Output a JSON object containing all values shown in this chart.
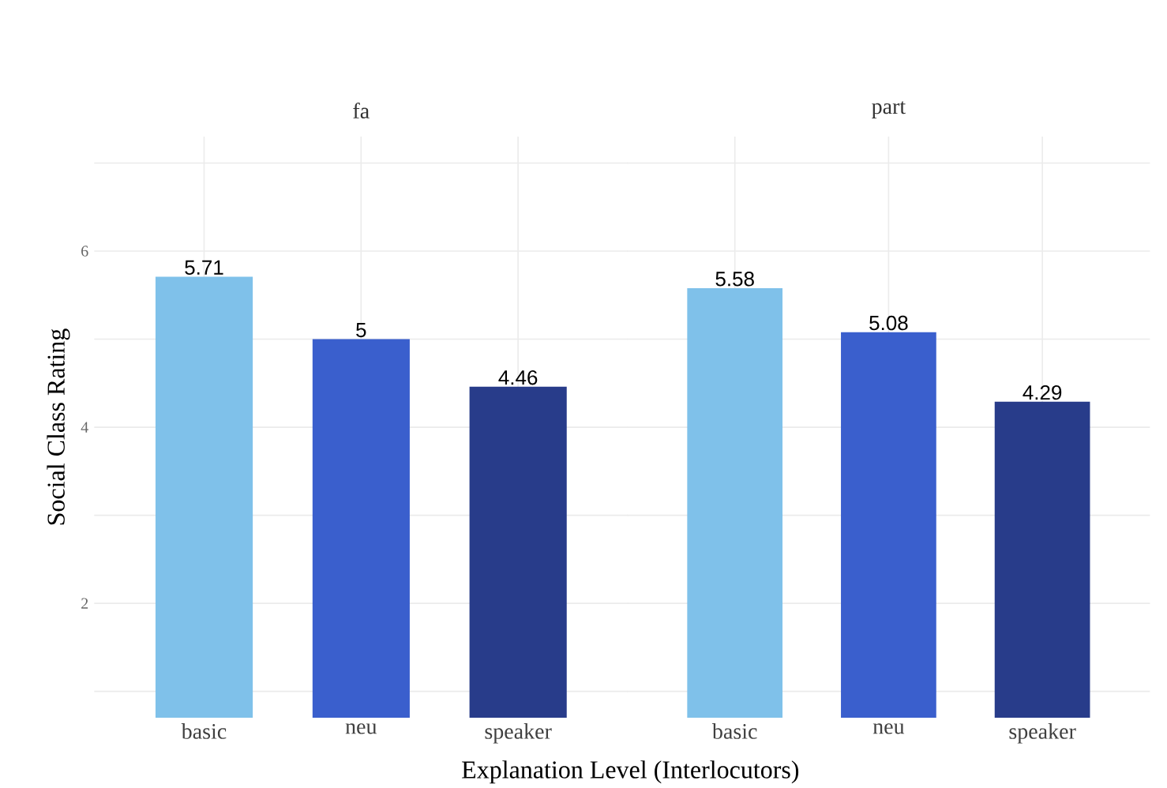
{
  "chart_data": [
    {
      "type": "bar",
      "title": "fa",
      "xlabel": "Explanation Level (Interlocutors)",
      "ylabel": "Social Class Rating",
      "categories": [
        "basic",
        "neu",
        "speaker"
      ],
      "values": [
        5.71,
        5,
        4.46
      ],
      "colors": [
        "#7fc1ea",
        "#3a5fcd",
        "#283c8a"
      ],
      "data_labels": true,
      "ylim": [
        0.7,
        7.3
      ],
      "yticks": [
        {
          "value": 1,
          "label": null
        },
        2,
        {
          "value": 3,
          "label": null
        },
        4,
        {
          "value": 5,
          "label": null
        },
        6,
        {
          "value": 7,
          "label": null
        }
      ],
      "grid": true
    },
    {
      "type": "bar",
      "title": "part",
      "categories": [
        "basic",
        "neu",
        "speaker"
      ],
      "values": [
        5.58,
        5.08,
        4.29
      ],
      "colors": [
        "#7fc1ea",
        "#3a5fcd",
        "#283c8a"
      ],
      "data_labels": true,
      "ylim": [
        0.7,
        7.3
      ],
      "yticks": [
        {
          "value": 1,
          "label": null
        },
        2,
        {
          "value": 3,
          "label": null
        },
        4,
        {
          "value": 5,
          "label": null
        },
        6,
        {
          "value": 7,
          "label": null
        }
      ],
      "grid": true,
      "tick_labels": "x"
    }
  ]
}
